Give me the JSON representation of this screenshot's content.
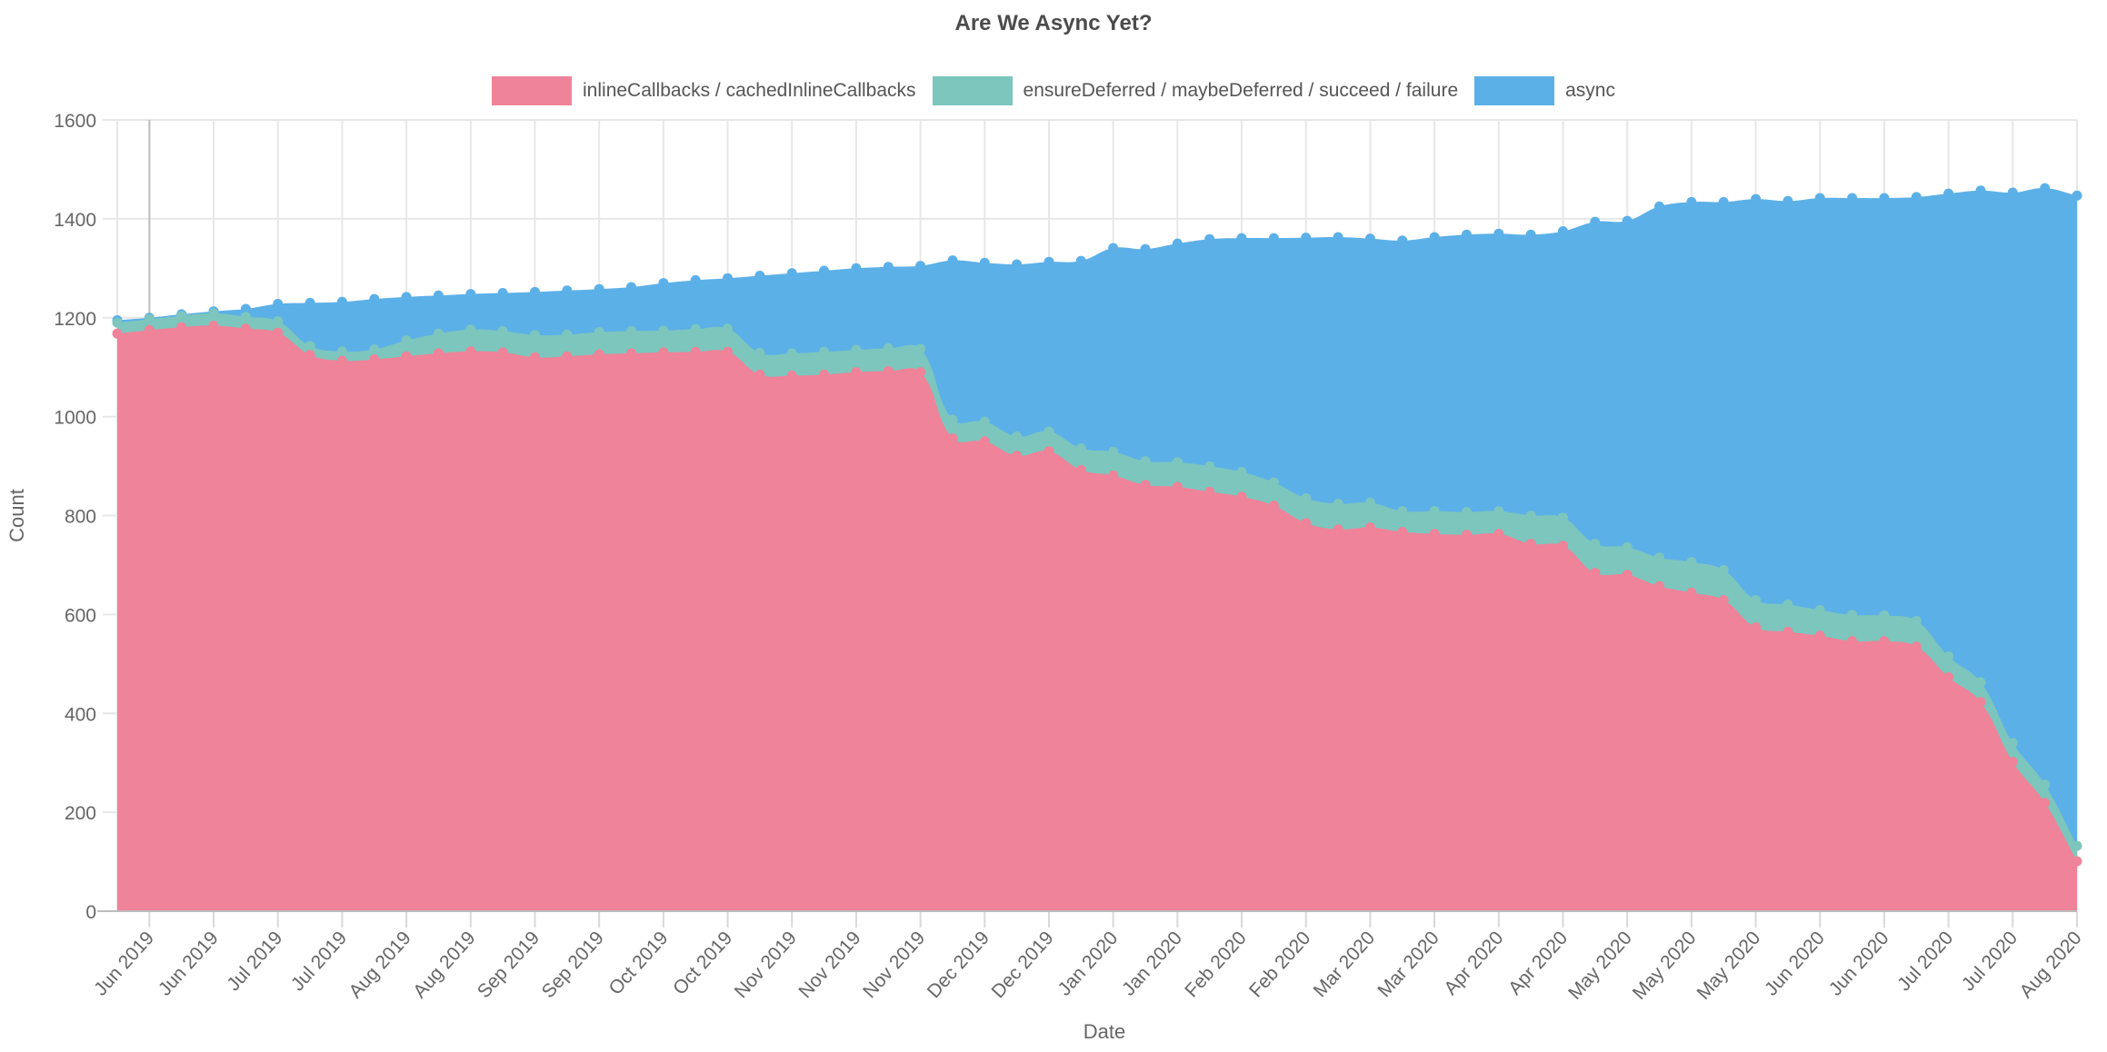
{
  "title": "Are We Async Yet?",
  "axes": {
    "x_title": "Date",
    "y_title": "Count"
  },
  "chart_data": {
    "type": "area",
    "stacked": true,
    "title": "Are We Async Yet?",
    "xlabel": "Date",
    "ylabel": "Count",
    "ylim": [
      0,
      1600
    ],
    "y_tick_step": 200,
    "y_tick_labels": [
      "0",
      "200",
      "400",
      "600",
      "800",
      "1000",
      "1200",
      "1400",
      "1600"
    ],
    "x_tick_labels": [
      "Jun 2019",
      "Jun 2019",
      "Jul 2019",
      "Jul 2019",
      "Aug 2019",
      "Aug 2019",
      "Sep 2019",
      "Sep 2019",
      "Oct 2019",
      "Oct 2019",
      "Nov 2019",
      "Nov 2019",
      "Nov 2019",
      "Dec 2019",
      "Dec 2019",
      "Jan 2020",
      "Jan 2020",
      "Feb 2020",
      "Feb 2020",
      "Mar 2020",
      "Mar 2020",
      "Apr 2020",
      "Apr 2020",
      "May 2020",
      "May 2020",
      "May 2020",
      "Jun 2020",
      "Jun 2020",
      "Jul 2020",
      "Jul 2020",
      "Aug 2020"
    ],
    "x_tick_start_index": 1,
    "x_tick_every": 2,
    "n_points": 62,
    "grid": true,
    "legend_position": "top",
    "series": [
      {
        "name": "inlineCallbacks / cachedInlineCallbacks",
        "color": "#ef8399",
        "values": [
          1168,
          1175,
          1181,
          1184,
          1178,
          1170,
          1125,
          1113,
          1116,
          1122,
          1128,
          1132,
          1130,
          1120,
          1122,
          1126,
          1128,
          1130,
          1131,
          1131,
          1085,
          1083,
          1085,
          1090,
          1092,
          1090,
          956,
          950,
          921,
          930,
          892,
          881,
          862,
          858,
          848,
          838,
          820,
          785,
          772,
          776,
          767,
          763,
          761,
          763,
          743,
          739,
          684,
          680,
          657,
          644,
          629,
          574,
          565,
          557,
          546,
          546,
          535,
          473,
          423,
          302,
          219,
          101
        ]
      },
      {
        "name": "ensureDeferred / maybeDeferred / succeed / failure",
        "color": "#7cc6bd",
        "values": [
          22,
          22,
          23,
          25,
          24,
          23,
          18,
          19,
          20,
          32,
          40,
          44,
          43,
          45,
          44,
          45,
          45,
          44,
          46,
          47,
          44,
          45,
          46,
          45,
          46,
          47,
          38,
          40,
          39,
          40,
          44,
          48,
          48,
          50,
          52,
          50,
          47,
          50,
          52,
          50,
          42,
          46,
          46,
          46,
          57,
          57,
          59,
          56,
          58,
          62,
          61,
          55,
          55,
          52,
          53,
          52,
          52,
          42,
          40,
          38,
          37,
          31
        ]
      },
      {
        "name": "async",
        "color": "#5cb0e8",
        "values": [
          5,
          3,
          3,
          4,
          16,
          35,
          87,
          100,
          102,
          88,
          77,
          72,
          77,
          87,
          89,
          87,
          89,
          96,
          99,
          102,
          156,
          162,
          164,
          165,
          165,
          168,
          322,
          321,
          348,
          343,
          379,
          412,
          429,
          442,
          459,
          473,
          494,
          527,
          539,
          534,
          547,
          554,
          561,
          561,
          568,
          579,
          651,
          660,
          710,
          728,
          744,
          811,
          816,
          833,
          843,
          844,
          857,
          936,
          994,
          1113,
          1206,
          1315
        ]
      }
    ],
    "style": {
      "background": "#ffffff",
      "grid_color": "#e7e7e7",
      "first_gridline_color": "#bcbcbc",
      "axis_line_color": "#bdbdbd",
      "tick_stub_color": "#d9d9d9",
      "tick_text_color": "#666666",
      "axis_title_color": "#666666",
      "title_color": "#4c4c4c",
      "legend_text_color": "#555555",
      "point_radius": 5.5,
      "line_tension": 0.4
    }
  }
}
